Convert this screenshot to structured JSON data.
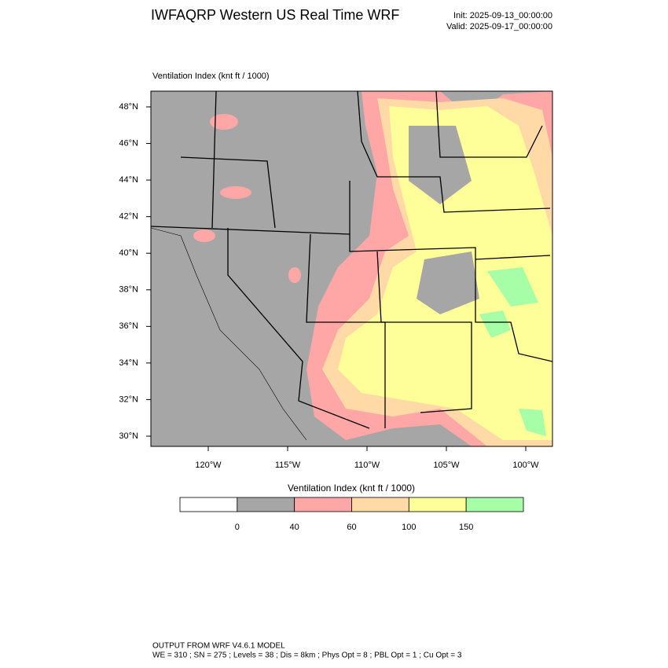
{
  "header": {
    "title": "IWFAQRP Western US Real Time WRF",
    "init": "Init: 2025-09-13_00:00:00",
    "valid": "Valid: 2025-09-17_00:00:00"
  },
  "plot": {
    "label": "Ventilation Index   (knt ft / 1000)",
    "lat_labels": [
      "48°N",
      "46°N",
      "44°N",
      "42°N",
      "40°N",
      "38°N",
      "36°N",
      "34°N",
      "32°N",
      "30°N"
    ],
    "lon_labels": [
      "120°W",
      "115°W",
      "110°W",
      "105°W",
      "100°W"
    ]
  },
  "colorbar": {
    "title": "Ventilation Index   (knt ft / 1000)",
    "labels": [
      "0",
      "40",
      "60",
      "100",
      "150"
    ],
    "colors": [
      "#ffffff",
      "#a6a6a6",
      "#ffa6a6",
      "#ffd9a6",
      "#ffff99",
      "#a6ffa6"
    ]
  },
  "footer": {
    "line1": "OUTPUT FROM WRF V4.6.1 MODEL",
    "line2": "WE = 310 ; SN = 275 ; Levels = 38 ; Dis = 8km ; Phys Opt = 8 ; PBL Opt = 1 ; Cu Opt = 3"
  }
}
